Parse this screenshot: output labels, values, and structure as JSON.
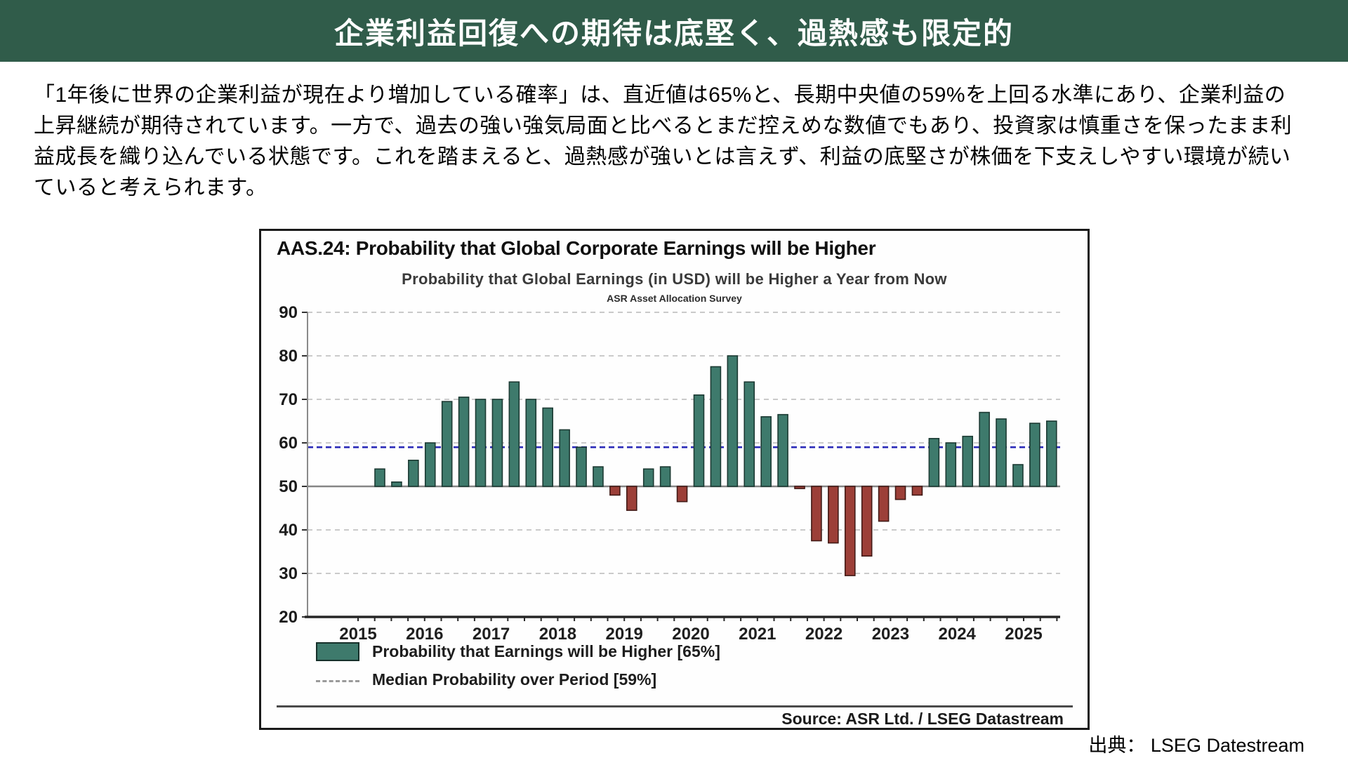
{
  "header": {
    "title": "企業利益回復への期待は底堅く、過熱感も限定的",
    "bg_color": "#305c4a",
    "text_color": "#ffffff"
  },
  "paragraph": {
    "lines": [
      "「1年後に世界の企業利益が現在より増加している確率」は、直近値は65%と、長期中央値の59%を上回る水準にあり、企業利益の",
      "上昇継続が期待されています。一方で、過去の強い強気局面と比べるとまだ控えめな数値でもあり、投資家は慎重さを保ったまま利",
      "益成長を織り込んでいる状態です。これを踏まえると、過熱感が強いとは言えず、利益の底堅さが株価を下支えしやすい環境が続い",
      "ていると考えられます。"
    ]
  },
  "chart": {
    "frame_title": "AAS.24: Probability that Global Corporate Earnings will be Higher",
    "subtitle": "Probability that Global Earnings (in USD) will be Higher a Year from Now",
    "survey_label": "ASR Asset Allocation Survey",
    "legend_bar_label": "Probability that Earnings will be Higher [65%]",
    "legend_median_label": "Median Probability over Period [59%]",
    "source": "Source: ASR Ltd. / LSEG Datastream"
  },
  "footer": {
    "source_caption": "出典： LSEG Datestream"
  },
  "chart_data": {
    "type": "bar",
    "title": "AAS.24: Probability that Global Corporate Earnings will be Higher",
    "subtitle": "Probability that Global Earnings (in USD) will be Higher a Year from Now",
    "note": "ASR Asset Allocation Survey",
    "x_unit": "quarterly",
    "categories": [
      "2015-Q2",
      "2015-Q3",
      "2015-Q4",
      "2016-Q1",
      "2016-Q2",
      "2016-Q3",
      "2016-Q4",
      "2017-Q1",
      "2017-Q2",
      "2017-Q3",
      "2017-Q4",
      "2018-Q1",
      "2018-Q2",
      "2018-Q3",
      "2018-Q4",
      "2019-Q1",
      "2019-Q2",
      "2019-Q3",
      "2019-Q4",
      "2020-Q1",
      "2020-Q2",
      "2020-Q3",
      "2020-Q4",
      "2021-Q1",
      "2021-Q2",
      "2021-Q3",
      "2021-Q4",
      "2022-Q1",
      "2022-Q2",
      "2022-Q3",
      "2022-Q4",
      "2023-Q1",
      "2023-Q2",
      "2023-Q3",
      "2023-Q4",
      "2024-Q1",
      "2024-Q2",
      "2024-Q3",
      "2024-Q4",
      "2025-Q1",
      "2025-Q2"
    ],
    "values": [
      54,
      51,
      56,
      60,
      69.5,
      70.5,
      70,
      70,
      74,
      70,
      68,
      63,
      59,
      54.5,
      48,
      44.5,
      54,
      54.5,
      46.5,
      71,
      77.5,
      80,
      74,
      66,
      66.5,
      49.5,
      37.5,
      37,
      29.5,
      34,
      42,
      47,
      48,
      61,
      60,
      61.5,
      67,
      65.5,
      55,
      64.5,
      65
    ],
    "baseline": 50,
    "median": 59,
    "latest": 65,
    "ylim": [
      20,
      90
    ],
    "yticks": [
      20,
      30,
      40,
      50,
      60,
      70,
      80,
      90
    ],
    "year_labels": [
      "2015",
      "2016",
      "2017",
      "2018",
      "2019",
      "2020",
      "2021",
      "2022",
      "2023",
      "2024",
      "2025"
    ],
    "grid": "dashed-horizontal",
    "legend_position": "bottom-left",
    "legend": [
      {
        "swatch": "bar",
        "label": "Probability that Earnings will be Higher [65%]"
      },
      {
        "swatch": "dashed-line",
        "label": "Median Probability over Period [59%]"
      }
    ],
    "colors": {
      "above_baseline": "#3e7a6c",
      "above_stroke": "#1c3a33",
      "below_baseline": "#9c3f38",
      "below_stroke": "#421a16",
      "median_line": "#2a2ab8",
      "gridline": "#b8b8b8",
      "baseline_line": "#858585",
      "axis": "#262626"
    }
  }
}
